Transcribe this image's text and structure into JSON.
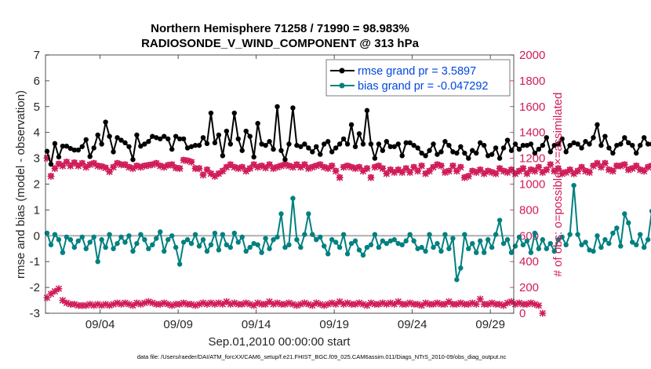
{
  "chart_data": {
    "type": "line",
    "title": "Northern Hemisphere 71258 / 71990 = 98.983%",
    "subtitle": "RADIOSONDE_V_WIND_COMPONENT @ 313 hPa",
    "xlabel": "Sep.01,2010 00:00:00 start",
    "ylabel_left": "rmse and bias (model - observation)",
    "ylabel_right": "# of obs: o=possible; ×=assimilated",
    "footnote": "data file: /Users/raeder/DAI/ATM_forcXX/CAM6_setup/f.e21.FHIST_BGC.f09_025.CAM6assim.011/Diags_NTrS_2010-09/obs_diag_output.nc",
    "xlim": [
      0.5,
      30.5
    ],
    "x_ticks": [
      4,
      9,
      14,
      19,
      24,
      29
    ],
    "x_tick_labels": [
      "09/04",
      "09/09",
      "09/14",
      "09/19",
      "09/24",
      "09/29"
    ],
    "ylim_left": [
      -3,
      7
    ],
    "y_ticks_left": [
      "-3",
      "-2",
      "-1",
      "0",
      "1",
      "2",
      "3",
      "4",
      "5",
      "6",
      "7"
    ],
    "ylim_right": [
      0,
      2000
    ],
    "y_ticks_right": [
      "0",
      "200",
      "400",
      "600",
      "800",
      "1000",
      "1200",
      "1400",
      "1600",
      "1800",
      "2000"
    ],
    "zero_line": 0,
    "x_start": 0.6,
    "x_step": 0.25,
    "colors": {
      "rmse": "#000000",
      "bias": "#008080",
      "obs": "#d01c5a",
      "zero": "#b0b0b0"
    },
    "legend": {
      "position": "top-right",
      "rmse_label": "rmse grand pr = 3.5897",
      "bias_label": "bias grand pr = -0.047292",
      "text_color": "#0047e0"
    },
    "series": [
      {
        "name": "rmse grand pr = 3.5897",
        "axis": "left",
        "values": [
          3.27,
          2.77,
          3.57,
          3.05,
          3.47,
          3.47,
          3.38,
          3.32,
          3.32,
          3.45,
          3.72,
          3.07,
          3.4,
          3.9,
          3.55,
          4.4,
          3.85,
          3.25,
          3.8,
          3.7,
          3.6,
          3.45,
          2.95,
          3.9,
          3.47,
          3.55,
          3.65,
          3.85,
          3.8,
          3.75,
          3.85,
          3.75,
          3.35,
          3.85,
          3.75,
          3.75,
          3.4,
          3.45,
          3.5,
          3.5,
          3.8,
          3.57,
          4.75,
          3.6,
          3.9,
          3.1,
          4.05,
          3.55,
          4.75,
          3.75,
          3.3,
          4.05,
          3.85,
          3.05,
          4.35,
          3.55,
          3.5,
          3.65,
          3.35,
          5.0,
          3.3,
          2.95,
          3.55,
          4.95,
          3.5,
          3.45,
          3.55,
          3.4,
          3.25,
          3.45,
          3.15,
          3.55,
          3.65,
          3.25,
          3.4,
          3.55,
          3.75,
          3.55,
          4.3,
          3.45,
          3.95,
          3.55,
          4.85,
          3.55,
          3.0,
          3.55,
          3.3,
          3.65,
          3.45,
          3.45,
          3.55,
          3.1,
          3.6,
          3.6,
          3.5,
          3.4,
          3.2,
          3.1,
          3.3,
          3.55,
          3.15,
          3.25,
          3.65,
          3.5,
          3.25,
          3.2,
          3.45,
          3.2,
          3.0,
          3.3,
          3.2,
          3.6,
          3.5,
          3.1,
          3.15,
          3.4,
          3.0,
          3.4,
          3.7,
          3.3,
          3.55,
          3.35,
          3.5,
          3.5,
          3.55,
          3.2,
          3.35,
          3.5,
          3.8,
          3.25,
          3.5,
          3.55,
          3.75,
          3.25,
          3.5,
          3.6,
          3.55,
          3.4,
          3.65,
          3.55,
          3.8,
          4.3,
          3.5,
          3.85,
          3.4,
          3.2,
          3.5,
          3.55,
          3.8,
          3.6,
          3.5,
          3.2,
          3.5,
          3.8,
          3.55,
          3.55,
          3.65,
          3.5,
          3.35,
          3.55,
          3.35,
          3.4,
          3.45,
          3.5,
          3.3,
          3.75,
          3.45,
          3.3,
          4.85,
          4.25,
          3.6,
          3.95,
          3.5,
          3.3,
          3.45,
          3.7,
          3.45,
          3.2,
          3.75,
          3.75,
          3.45,
          3.2,
          3.6,
          3.35,
          3.55,
          3.5,
          3.3,
          3.85,
          3.35,
          3.15,
          3.5,
          3.55,
          3.55,
          3.6,
          3.45,
          3.85,
          3.6,
          3.4,
          3.45,
          3.6,
          3.3,
          3.6,
          3.85,
          3.4,
          3.25,
          3.85,
          3.55,
          3.6,
          3.45,
          3.6,
          3.5,
          3.3,
          3.6,
          3.4,
          3.35,
          3.45,
          3.65,
          3.3,
          3.6,
          3.9,
          3.3,
          3.6,
          3.85,
          3.55,
          3.4,
          3.35,
          3.65,
          3.25,
          3.35,
          3.5,
          3.7,
          3.3,
          3.95,
          3.5,
          3.0,
          2.7
        ]
      },
      {
        "name": "bias grand pr = -0.047292",
        "axis": "left",
        "values": [
          0.1,
          -0.35,
          0.05,
          -0.15,
          -0.65,
          -0.05,
          -0.15,
          -0.45,
          -0.2,
          -0.05,
          -0.5,
          -0.25,
          -0.05,
          -1.0,
          -0.15,
          -0.45,
          0.05,
          -0.5,
          -0.3,
          -0.05,
          -0.25,
          0.0,
          -0.6,
          -0.3,
          0.05,
          -0.15,
          -0.5,
          -0.35,
          -0.1,
          0.15,
          -0.6,
          -0.15,
          0.0,
          -0.45,
          -1.1,
          -0.25,
          -0.15,
          -0.3,
          0.05,
          -0.4,
          -0.15,
          -0.6,
          -0.35,
          0.1,
          -0.55,
          0.05,
          -0.35,
          -0.45,
          0.1,
          -0.25,
          -0.05,
          -0.6,
          -0.45,
          -0.3,
          -0.35,
          -0.65,
          -0.1,
          -0.5,
          -0.15,
          -0.05,
          0.85,
          -0.45,
          -0.35,
          1.45,
          -0.15,
          -0.45,
          0.05,
          0.85,
          0.05,
          -0.15,
          -0.05,
          -0.4,
          -0.7,
          -0.15,
          -0.25,
          -0.45,
          0.05,
          -0.7,
          -0.3,
          -0.2,
          -0.55,
          -0.75,
          -0.45,
          -0.35,
          0.05,
          -0.45,
          -0.2,
          -0.3,
          -0.2,
          -0.15,
          -0.3,
          -0.35,
          -0.2,
          0.05,
          -0.2,
          -0.5,
          -0.45,
          -0.6,
          0.05,
          -0.45,
          -0.3,
          -0.6,
          0.05,
          -0.5,
          -0.1,
          -1.7,
          -1.25,
          0.05,
          -0.5,
          -0.3,
          -0.65,
          -0.2,
          -0.65,
          -0.15,
          -0.45,
          0.05,
          0.6,
          -0.3,
          -0.15,
          -0.65,
          -0.4,
          -0.05,
          -0.35,
          -0.2,
          -0.65,
          0.1,
          -0.5,
          -0.15,
          -0.5,
          -0.3,
          -0.6,
          -0.15,
          -0.05,
          -0.35,
          0.05,
          1.95,
          0.05,
          -0.35,
          -0.25,
          -0.55,
          -0.6,
          0.0,
          -0.45,
          -0.15,
          -0.3,
          0.1,
          0.3,
          -0.4,
          0.85,
          0.5,
          -0.25,
          -0.35,
          0.05,
          -0.45,
          -0.15,
          0.95,
          -0.1,
          -0.3,
          0.45,
          -0.35,
          0.6,
          -0.4,
          -0.45,
          -0.25,
          -0.35,
          -0.65,
          -0.25,
          -0.45,
          -0.25,
          0.3,
          -0.7,
          0.2,
          -0.6,
          0.05,
          -0.4,
          0.05,
          0.15,
          -0.25,
          0.15,
          0.3,
          -0.55,
          -0.45,
          -0.15,
          0.45,
          -0.5,
          0.15,
          -0.2,
          0.3,
          0.05,
          1.15,
          -0.1,
          -0.15,
          -0.05,
          0.0,
          -0.45,
          -0.3,
          0.1,
          0.15,
          -0.35,
          -0.45,
          -0.3,
          0.55,
          -0.1,
          -0.35,
          -0.75,
          -0.3,
          0.25,
          -0.1,
          -0.25,
          -0.15,
          0.15,
          -0.45,
          -0.05,
          0.15,
          -0.3,
          0.4,
          0.2,
          -0.4,
          -0.05,
          0.6,
          0.75,
          -0.25,
          0.25,
          0.55,
          -0.2,
          0.15,
          0.85,
          -0.2,
          -0.35,
          0.05,
          0.25,
          0.5,
          0.6,
          0.0,
          -0.15,
          0.05,
          0.7,
          0.35,
          -0.1,
          -0.25,
          0.1,
          0.55,
          0.05,
          -0.2,
          -0.05,
          0.15,
          -0.15,
          0.05,
          0.25,
          0.6,
          0.3
        ]
      },
      {
        "name": "# of obs assimilated",
        "axis": "right",
        "marker": "x",
        "values": [
          1200,
          1060,
          1120,
          1155,
          1140,
          1170,
          1140,
          1165,
          1140,
          1160,
          1130,
          1150,
          1160,
          1140,
          1135,
          1125,
          1095,
          1130,
          1160,
          1150,
          1150,
          1130,
          1120,
          1140,
          1130,
          1140,
          1145,
          1150,
          1160,
          1140,
          1130,
          1145,
          1150,
          1125,
          1120,
          1185,
          1180,
          1170,
          1120,
          1120,
          1070,
          1110,
          1080,
          1060,
          1080,
          1100,
          1130,
          1150,
          1130,
          1120,
          1130,
          1100,
          1120,
          1150,
          1130,
          1140,
          1125,
          1150,
          1120,
          1130,
          1140,
          1150,
          1140,
          1130,
          1150,
          1130,
          1150,
          1120,
          1130,
          1140,
          1150,
          1130,
          1120,
          1140,
          1100,
          1050,
          1130,
          1140,
          1130,
          1120,
          1130,
          1100,
          1120,
          1050,
          1130,
          1140,
          1120,
          1080,
          1110,
          1090,
          1110,
          1090,
          1120,
          1090,
          1130,
          1100,
          1140,
          1080,
          1100,
          1130,
          1150,
          1140,
          1090,
          1100,
          1140,
          1100,
          1130,
          1050,
          1060,
          1100,
          1090,
          1110,
          1080,
          1100,
          1090,
          1080,
          1120,
          1100,
          1090,
          1110,
          1080,
          1100,
          1120,
          1080,
          1110,
          1100,
          1130,
          1090,
          1110,
          1150,
          1100,
          1120,
          1080,
          1090,
          1110,
          1080,
          1100,
          1130,
          1100,
          1090,
          1140,
          1160,
          1130,
          1160,
          1110,
          1100,
          1140,
          1140,
          1150,
          1110,
          1120,
          1140,
          1110,
          1100,
          1130,
          1140,
          1120,
          1110,
          1130,
          1090,
          1130,
          1110,
          1100,
          1140,
          1150,
          1120,
          1130,
          1140,
          1110,
          1130,
          1140,
          1080,
          1150,
          1120,
          1170,
          1160,
          1130,
          1110,
          1150,
          1130
        ]
      },
      {
        "name": "# of obs possible",
        "axis": "right",
        "marker": "o",
        "values": [
          1205,
          1065,
          1125,
          1160,
          1145,
          1175,
          1145,
          1170,
          1145,
          1165,
          1135,
          1155,
          1165,
          1145,
          1140,
          1130,
          1100,
          1135,
          1165,
          1155,
          1155,
          1135,
          1125,
          1145,
          1135,
          1145,
          1150,
          1155,
          1165,
          1145,
          1135,
          1150,
          1155,
          1130,
          1125,
          1190,
          1185,
          1175,
          1125,
          1125,
          1075,
          1115,
          1085,
          1065,
          1085,
          1105,
          1135,
          1155,
          1135,
          1125,
          1135,
          1105,
          1125,
          1155,
          1135,
          1145,
          1130,
          1155,
          1125,
          1135,
          1145,
          1155,
          1145,
          1135,
          1155,
          1135,
          1155,
          1125,
          1135,
          1145,
          1155,
          1135,
          1125,
          1145,
          1105,
          1055,
          1135,
          1145,
          1135,
          1125,
          1135,
          1105,
          1125,
          1055,
          1135,
          1145,
          1125,
          1085,
          1115,
          1095,
          1115,
          1095,
          1125,
          1095,
          1135,
          1105,
          1145,
          1085,
          1105,
          1135,
          1155,
          1145,
          1095,
          1105,
          1145,
          1105,
          1135,
          1055,
          1065,
          1105,
          1095,
          1115,
          1085,
          1105,
          1095,
          1085,
          1125,
          1105,
          1095,
          1115,
          1085,
          1105,
          1125,
          1085,
          1115,
          1105,
          1135,
          1095,
          1115,
          1155,
          1105,
          1125,
          1085,
          1095,
          1115,
          1085,
          1105,
          1135,
          1105,
          1095,
          1145,
          1165,
          1135,
          1165,
          1115,
          1105,
          1145,
          1145,
          1155,
          1115,
          1125,
          1145,
          1115,
          1105,
          1135,
          1145,
          1125,
          1115,
          1135,
          1095,
          1135,
          1115,
          1105,
          1145,
          1155,
          1125,
          1135,
          1145,
          1115,
          1135,
          1145,
          1085,
          1155,
          1125,
          1175,
          1165,
          1135,
          1115,
          1155,
          1135
        ]
      },
      {
        "name": "# of obs (lower)",
        "axis": "right",
        "marker": "x",
        "values": [
          120,
          150,
          170,
          190,
          100,
          80,
          70,
          70,
          60,
          60,
          60,
          70,
          60,
          70,
          60,
          70,
          60,
          70,
          80,
          70,
          80,
          70,
          60,
          80,
          70,
          80,
          90,
          80,
          70,
          70,
          80,
          70,
          60,
          70,
          70,
          80,
          70,
          70,
          60,
          70,
          80,
          70,
          80,
          70,
          80,
          70,
          90,
          70,
          80,
          70,
          70,
          80,
          70,
          60,
          80,
          70,
          70,
          90,
          70,
          80,
          70,
          70,
          80,
          70,
          60,
          70,
          80,
          70,
          60,
          80,
          70,
          60,
          70,
          80,
          70,
          90,
          70,
          80,
          70,
          70,
          80,
          70,
          60,
          80,
          70,
          70,
          80,
          70,
          80,
          70,
          90,
          70,
          70,
          80,
          70,
          70,
          60,
          80,
          70,
          70,
          80,
          70,
          70,
          90,
          70,
          70,
          80,
          70,
          70,
          80,
          70,
          110,
          70,
          70,
          80,
          70,
          70,
          60,
          80,
          90,
          70,
          80,
          70,
          70,
          80,
          70,
          60,
          0
        ]
      }
    ]
  }
}
